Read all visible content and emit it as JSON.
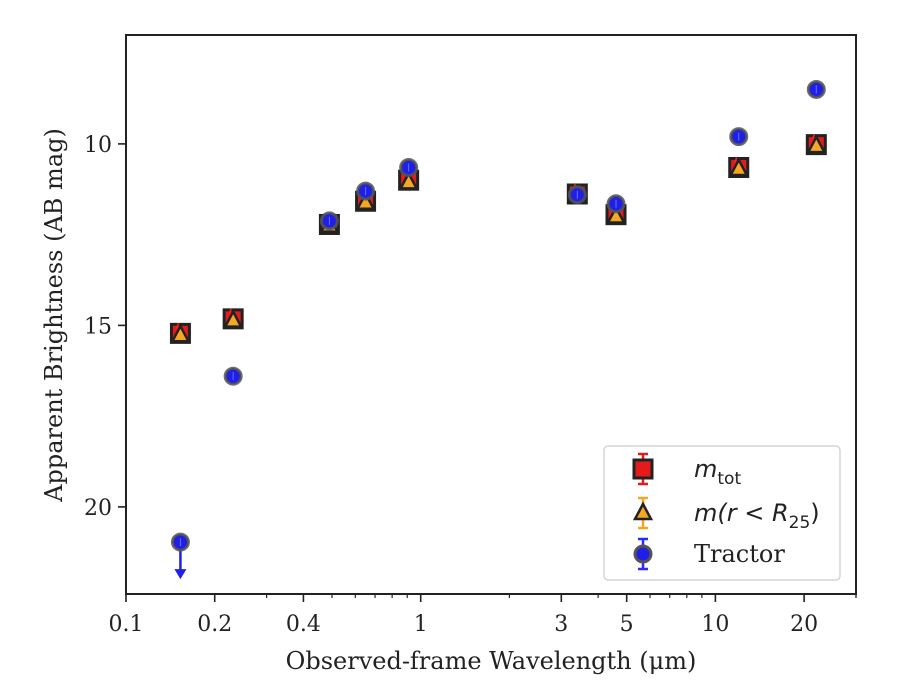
{
  "chart_data": {
    "type": "scatter",
    "xlabel": "Observed-frame Wavelength (μm)",
    "ylabel": "Apparent Brightness (AB mag)",
    "x_scale": "log",
    "xlim": [
      0.1,
      30
    ],
    "ylim": [
      22.4,
      7.0
    ],
    "y_inverted": true,
    "x_ticks": [
      0.1,
      0.2,
      0.4,
      1,
      3,
      5,
      10,
      20
    ],
    "x_tick_labels": [
      "0.1",
      "0.2",
      "0.4",
      "1",
      "3",
      "5",
      "10",
      "20"
    ],
    "y_ticks": [
      10,
      15,
      20
    ],
    "y_tick_labels": [
      "10",
      "15",
      "20"
    ],
    "grid": false,
    "legend_position": "lower-right",
    "series": [
      {
        "key": "mtot",
        "marker": "square",
        "color": "#e41a1c",
        "edge_color": "#222222",
        "points": [
          {
            "x": 0.153,
            "y": 15.22
          },
          {
            "x": 0.231,
            "y": 14.82
          },
          {
            "x": 0.49,
            "y": 12.22
          },
          {
            "x": 0.65,
            "y": 11.58
          },
          {
            "x": 0.91,
            "y": 11.0
          },
          {
            "x": 3.4,
            "y": 11.38
          },
          {
            "x": 4.6,
            "y": 11.95
          },
          {
            "x": 12.0,
            "y": 10.65
          },
          {
            "x": 22.0,
            "y": 10.02
          }
        ]
      },
      {
        "key": "mr25",
        "marker": "triangle",
        "color": "#f5a623",
        "edge_color": "#222222",
        "points": [
          {
            "x": 0.153,
            "y": 15.27
          },
          {
            "x": 0.231,
            "y": 14.87
          },
          {
            "x": 0.49,
            "y": 12.25
          },
          {
            "x": 0.65,
            "y": 11.62
          },
          {
            "x": 0.91,
            "y": 11.06
          },
          {
            "x": 3.4,
            "y": 11.42
          },
          {
            "x": 4.6,
            "y": 12.0
          },
          {
            "x": 12.0,
            "y": 10.69
          },
          {
            "x": 22.0,
            "y": 10.06
          }
        ]
      },
      {
        "key": "tractor",
        "name": "Tractor",
        "marker": "circle",
        "color": "#1f1fe6",
        "edge_color": "#555555",
        "points": [
          {
            "x": 0.153,
            "y": 20.97,
            "upper_limit": true
          },
          {
            "x": 0.231,
            "y": 16.4
          },
          {
            "x": 0.49,
            "y": 12.12
          },
          {
            "x": 0.65,
            "y": 11.3
          },
          {
            "x": 0.91,
            "y": 10.65
          },
          {
            "x": 3.4,
            "y": 11.4
          },
          {
            "x": 4.6,
            "y": 11.65
          },
          {
            "x": 12.0,
            "y": 9.8
          },
          {
            "x": 22.0,
            "y": 8.5
          }
        ]
      }
    ],
    "legend": [
      {
        "series": "mtot",
        "base": "m",
        "sub": "tot",
        "suffix": ""
      },
      {
        "series": "mr25",
        "base": "m(r < R",
        "sub": "25",
        "suffix": ")"
      },
      {
        "series": "tractor",
        "label": "Tractor"
      }
    ]
  }
}
